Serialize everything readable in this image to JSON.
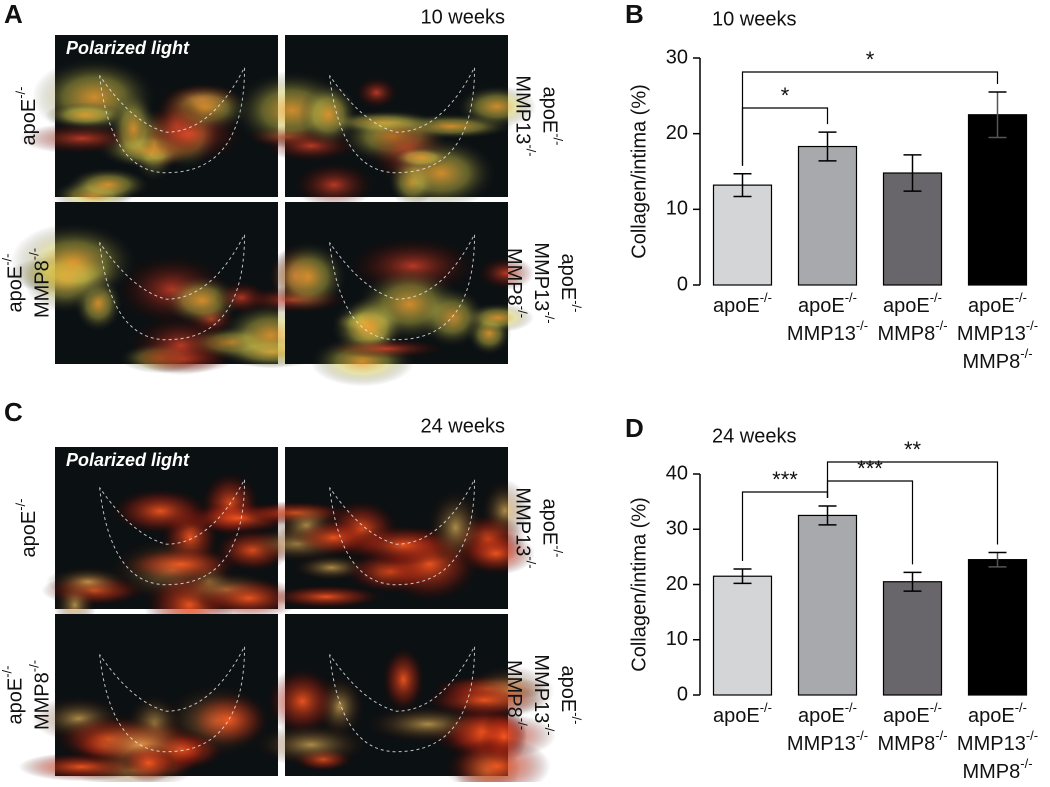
{
  "panels": [
    {
      "letter": "A",
      "time": "10 weeks",
      "overlay": "Polarized light",
      "labels": [
        [
          [
            "apoE",
            "-/-"
          ]
        ],
        [
          [
            "apoE",
            "-/-"
          ],
          [
            "MMP13",
            "-/-"
          ]
        ],
        [
          [
            "apoE",
            "-/-"
          ],
          [
            "MMP8",
            "-/-"
          ]
        ],
        [
          [
            "apoE",
            "-/-"
          ],
          [
            "MMP13",
            "-/-"
          ],
          [
            "MMP8",
            "-/-"
          ]
        ]
      ]
    },
    {
      "letter": "C",
      "time": "24 weeks",
      "overlay": "Polarized light",
      "labels": [
        [
          [
            "apoE",
            "-/-"
          ]
        ],
        [
          [
            "apoE",
            "-/-"
          ],
          [
            "MMP13",
            "-/-"
          ]
        ],
        [
          [
            "apoE",
            "-/-"
          ],
          [
            "MMP8",
            "-/-"
          ]
        ],
        [
          [
            "apoE",
            "-/-"
          ],
          [
            "MMP13",
            "-/-"
          ],
          [
            "MMP8",
            "-/-"
          ]
        ]
      ]
    }
  ],
  "chart_data": [
    {
      "type": "bar",
      "panel": "B",
      "title": "10 weeks",
      "y_label": "Collagen/intima (%)",
      "categories": [
        [
          [
            "apoE",
            "-/-"
          ]
        ],
        [
          [
            "apoE",
            "-/-"
          ],
          [
            "MMP13",
            "-/-"
          ]
        ],
        [
          [
            "apoE",
            "-/-"
          ],
          [
            "MMP8",
            "-/-"
          ]
        ],
        [
          [
            "apoE",
            "-/-"
          ],
          [
            "MMP13",
            "-/-"
          ],
          [
            "MMP8",
            "-/-"
          ]
        ]
      ],
      "values": [
        13.2,
        18.3,
        14.8,
        22.5
      ],
      "errors": [
        1.5,
        1.9,
        2.4,
        3.0
      ],
      "colors": [
        "#d4d5d7",
        "#a8a9ad",
        "#68666a",
        "#000000"
      ],
      "ylim": [
        0,
        30
      ],
      "yticks": [
        0,
        10,
        20,
        30
      ],
      "significance": [
        {
          "pair": [
            0,
            1
          ],
          "label": "*"
        },
        {
          "pair": [
            0,
            3
          ],
          "label": "*"
        }
      ]
    },
    {
      "type": "bar",
      "panel": "D",
      "title": "24 weeks",
      "y_label": "Collagen/intima (%)",
      "categories": [
        [
          [
            "apoE",
            "-/-"
          ]
        ],
        [
          [
            "apoE",
            "-/-"
          ],
          [
            "MMP13",
            "-/-"
          ]
        ],
        [
          [
            "apoE",
            "-/-"
          ],
          [
            "MMP8",
            "-/-"
          ]
        ],
        [
          [
            "apoE",
            "-/-"
          ],
          [
            "MMP13",
            "-/-"
          ],
          [
            "MMP8",
            "-/-"
          ]
        ]
      ],
      "values": [
        21.5,
        32.5,
        20.5,
        24.5
      ],
      "errors": [
        1.3,
        1.7,
        1.7,
        1.3
      ],
      "colors": [
        "#d4d5d7",
        "#a8a9ad",
        "#68666a",
        "#000000"
      ],
      "ylim": [
        0,
        40
      ],
      "yticks": [
        0,
        10,
        20,
        30,
        40
      ],
      "significance": [
        {
          "pair": [
            0,
            1
          ],
          "label": "***"
        },
        {
          "pair": [
            1,
            2
          ],
          "label": "***"
        },
        {
          "pair": [
            1,
            3
          ],
          "label": "**"
        }
      ]
    }
  ]
}
